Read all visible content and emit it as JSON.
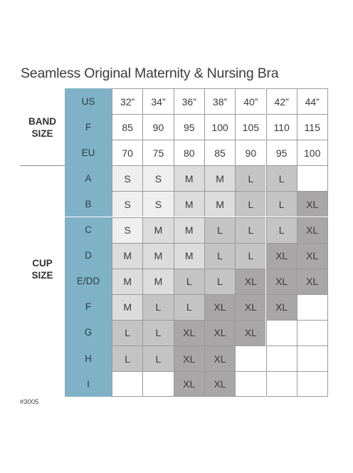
{
  "title": "Seamless Original Maternity & Nursing Bra",
  "band_label": [
    "BAND",
    "SIZE"
  ],
  "cup_label": [
    "CUP",
    "SIZE"
  ],
  "band_rows": [
    {
      "key": "US",
      "values": [
        "32”",
        "34”",
        "36”",
        "38”",
        "40”",
        "42”",
        "44”"
      ]
    },
    {
      "key": "F",
      "values": [
        "85",
        "90",
        "95",
        "100",
        "105",
        "110",
        "115"
      ]
    },
    {
      "key": "EU",
      "values": [
        "70",
        "75",
        "80",
        "85",
        "90",
        "95",
        "100"
      ]
    }
  ],
  "cup_rows": [
    {
      "key": "A",
      "values": [
        "S",
        "S",
        "M",
        "M",
        "L",
        "L",
        ""
      ]
    },
    {
      "key": "B",
      "values": [
        "S",
        "S",
        "M",
        "M",
        "L",
        "L",
        "XL"
      ]
    },
    {
      "key": "C",
      "values": [
        "S",
        "M",
        "M",
        "L",
        "L",
        "L",
        "XL"
      ]
    },
    {
      "key": "D",
      "values": [
        "M",
        "M",
        "M",
        "L",
        "L",
        "XL",
        "XL"
      ]
    },
    {
      "key": "E/DD",
      "values": [
        "M",
        "M",
        "L",
        "L",
        "XL",
        "XL",
        "XL"
      ]
    },
    {
      "key": "F",
      "values": [
        "M",
        "L",
        "L",
        "XL",
        "XL",
        "XL",
        ""
      ]
    },
    {
      "key": "G",
      "values": [
        "L",
        "L",
        "XL",
        "XL",
        "XL",
        "",
        ""
      ]
    },
    {
      "key": "H",
      "values": [
        "L",
        "L",
        "XL",
        "XL",
        "",
        "",
        ""
      ]
    },
    {
      "key": "I",
      "values": [
        "",
        "",
        "XL",
        "XL",
        "",
        "",
        ""
      ]
    }
  ],
  "size_colors": {
    "S": "#efefef",
    "M": "#dcdcdc",
    "L": "#c5c4c4",
    "XL": "#a8a6a7",
    "": "#ffffff"
  },
  "style_code": "#3005"
}
